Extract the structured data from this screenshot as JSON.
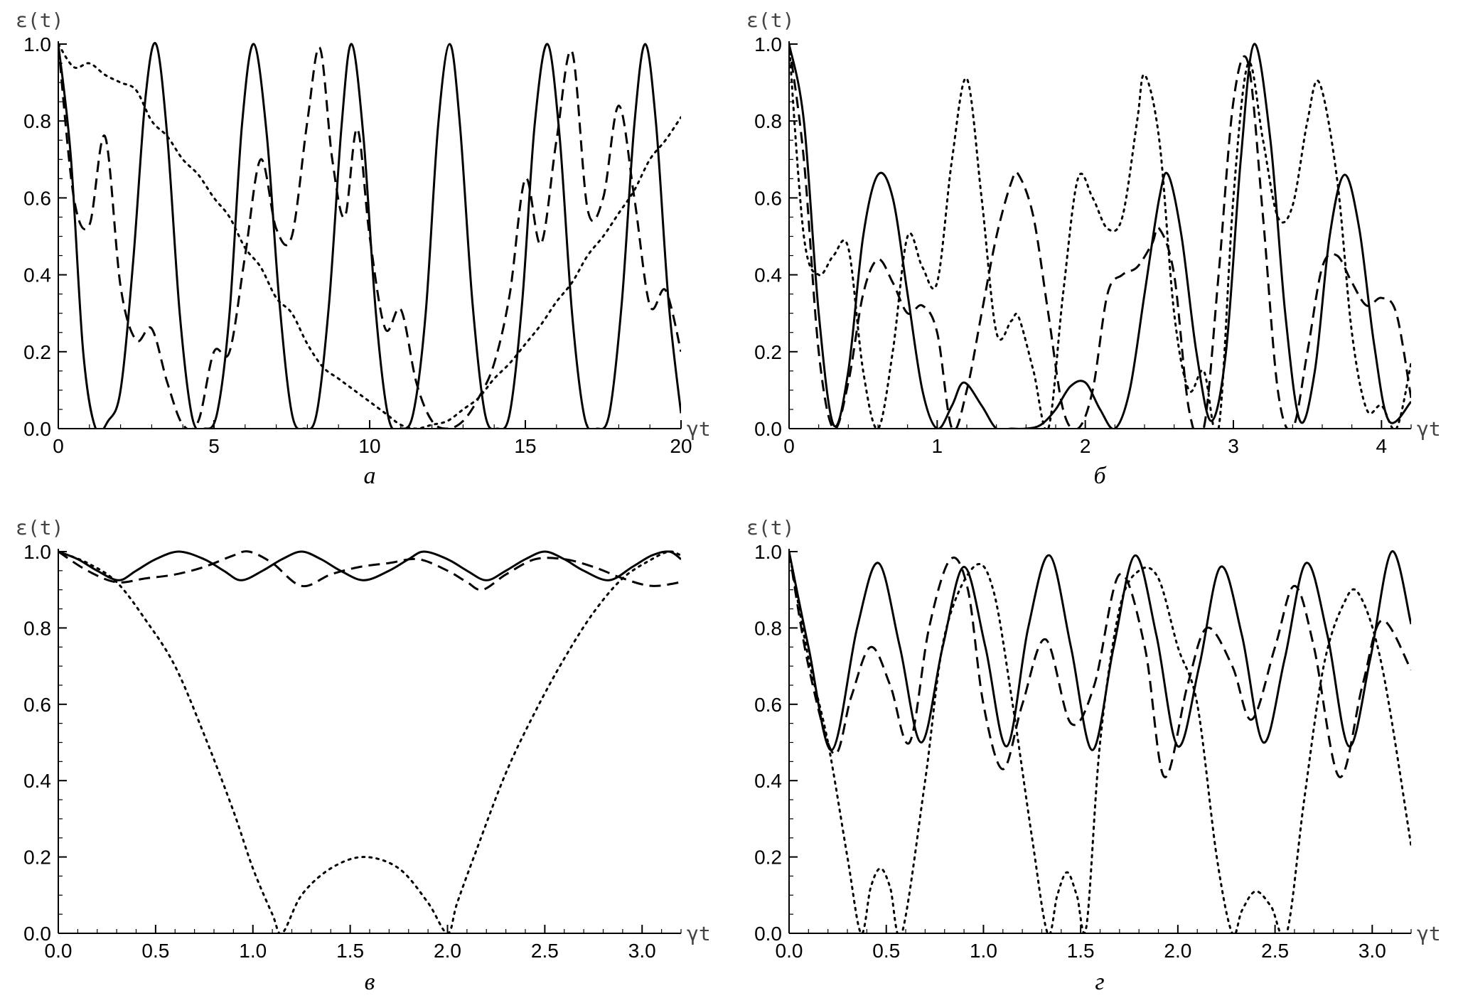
{
  "chart_data": [
    {
      "panel": "a",
      "caption": "а",
      "type": "line",
      "ylabel": "ε(t)",
      "xlabel": "γt",
      "xlim": [
        0,
        20
      ],
      "ylim": [
        0,
        1
      ],
      "xticks": [
        0,
        5,
        10,
        15,
        20
      ],
      "xtick_labels": [
        "0",
        "5",
        "10",
        "15",
        "20"
      ],
      "yticks": [
        0,
        0.2,
        0.4,
        0.6,
        0.8,
        1.0
      ],
      "ytick_labels": [
        "0.0",
        "0.2",
        "0.4",
        "0.6",
        "0.8",
        "1.0"
      ],
      "series": [
        {
          "style": "solid",
          "x": [
            0,
            0.4,
            0.8,
            1.2,
            1.6,
            2.0,
            2.4,
            2.8,
            3.14,
            3.5,
            3.9,
            4.3,
            4.7,
            5.1,
            5.5,
            5.9,
            6.28,
            6.7,
            7.1,
            7.5,
            7.9,
            8.3,
            8.7,
            9.1,
            9.42,
            9.8,
            10.2,
            10.6,
            11.0,
            11.4,
            11.8,
            12.2,
            12.57,
            12.9,
            13.3,
            13.7,
            14.1,
            14.5,
            14.9,
            15.3,
            15.71,
            16.1,
            16.5,
            16.9,
            17.3,
            17.7,
            18.1,
            18.5,
            18.85,
            19.2,
            19.6,
            20.0
          ],
          "y": [
            1.0,
            0.71,
            0.2,
            0.0,
            0.02,
            0.1,
            0.43,
            0.86,
            1.0,
            0.76,
            0.3,
            0.03,
            0.0,
            0.04,
            0.3,
            0.79,
            1.0,
            0.76,
            0.33,
            0.04,
            0.0,
            0.04,
            0.33,
            0.79,
            1.0,
            0.76,
            0.3,
            0.03,
            0.0,
            0.04,
            0.3,
            0.79,
            1.0,
            0.79,
            0.33,
            0.04,
            0.0,
            0.04,
            0.33,
            0.79,
            1.0,
            0.76,
            0.3,
            0.03,
            0.0,
            0.04,
            0.33,
            0.79,
            1.0,
            0.79,
            0.33,
            0.04
          ]
        },
        {
          "style": "dashed",
          "x": [
            0,
            0.5,
            1.0,
            1.5,
            2.0,
            2.5,
            3.0,
            3.5,
            4.0,
            4.5,
            5.0,
            5.5,
            6.0,
            6.5,
            7.0,
            7.5,
            8.0,
            8.4,
            8.8,
            9.2,
            9.6,
            10.0,
            10.5,
            11.0,
            11.5,
            12.0,
            12.5,
            13.0,
            13.5,
            14.0,
            14.5,
            15.0,
            15.5,
            16.0,
            16.5,
            17.0,
            17.5,
            18.0,
            18.5,
            19.0,
            19.5,
            20.0
          ],
          "y": [
            1.0,
            0.6,
            0.53,
            0.76,
            0.37,
            0.23,
            0.26,
            0.12,
            0.01,
            0.02,
            0.2,
            0.2,
            0.45,
            0.7,
            0.52,
            0.5,
            0.8,
            0.99,
            0.7,
            0.55,
            0.78,
            0.5,
            0.26,
            0.31,
            0.12,
            0.02,
            0.0,
            0.02,
            0.08,
            0.17,
            0.35,
            0.65,
            0.48,
            0.75,
            0.98,
            0.57,
            0.6,
            0.84,
            0.6,
            0.32,
            0.36,
            0.2
          ]
        },
        {
          "style": "dotted",
          "x": [
            0,
            0.5,
            1.0,
            1.5,
            2.0,
            2.5,
            3.0,
            3.5,
            4.0,
            4.5,
            5.0,
            5.5,
            6.0,
            6.5,
            7.0,
            7.5,
            8.0,
            8.5,
            9.0,
            9.5,
            10.0,
            10.5,
            11.0,
            11.5,
            12.0,
            12.5,
            13.0,
            13.5,
            14.0,
            14.5,
            15.0,
            15.5,
            16.0,
            16.5,
            17.0,
            17.5,
            18.0,
            18.5,
            19.0,
            19.5,
            20.0
          ],
          "y": [
            1.0,
            0.94,
            0.95,
            0.92,
            0.9,
            0.88,
            0.8,
            0.76,
            0.7,
            0.66,
            0.6,
            0.55,
            0.47,
            0.42,
            0.34,
            0.3,
            0.22,
            0.16,
            0.13,
            0.1,
            0.07,
            0.04,
            0.01,
            0.0,
            0.01,
            0.02,
            0.05,
            0.08,
            0.13,
            0.17,
            0.22,
            0.27,
            0.33,
            0.38,
            0.45,
            0.5,
            0.56,
            0.62,
            0.7,
            0.75,
            0.81
          ]
        }
      ]
    },
    {
      "panel": "b",
      "caption": "б",
      "type": "line",
      "ylabel": "ε(t)",
      "xlabel": "γt",
      "xlim": [
        0,
        4.2
      ],
      "ylim": [
        0,
        1
      ],
      "xticks": [
        0,
        1,
        2,
        3,
        4
      ],
      "xtick_labels": [
        "0",
        "1",
        "2",
        "3",
        "4"
      ],
      "yticks": [
        0,
        0.2,
        0.4,
        0.6,
        0.8,
        1.0
      ],
      "ytick_labels": [
        "0.0",
        "0.2",
        "0.4",
        "0.6",
        "0.8",
        "1.0"
      ],
      "series": [
        {
          "style": "solid",
          "x": [
            0,
            0.1,
            0.2,
            0.3,
            0.4,
            0.5,
            0.6,
            0.7,
            0.8,
            0.9,
            1.0,
            1.1,
            1.18,
            1.3,
            1.4,
            1.5,
            1.6,
            1.7,
            1.8,
            1.9,
            2.0,
            2.1,
            2.2,
            2.3,
            2.4,
            2.5,
            2.56,
            2.65,
            2.75,
            2.85,
            2.95,
            3.05,
            3.14,
            3.25,
            3.35,
            3.45,
            3.55,
            3.65,
            3.75,
            3.85,
            3.95,
            4.05,
            4.2
          ],
          "y": [
            1.0,
            0.8,
            0.3,
            0.01,
            0.15,
            0.5,
            0.66,
            0.6,
            0.35,
            0.1,
            0.0,
            0.06,
            0.12,
            0.06,
            0.0,
            0.0,
            0.0,
            0.01,
            0.05,
            0.11,
            0.12,
            0.05,
            0.0,
            0.1,
            0.35,
            0.6,
            0.66,
            0.5,
            0.2,
            0.02,
            0.2,
            0.7,
            1.0,
            0.75,
            0.3,
            0.02,
            0.15,
            0.5,
            0.66,
            0.52,
            0.22,
            0.02,
            0.07
          ]
        },
        {
          "style": "dashed",
          "x": [
            0,
            0.1,
            0.2,
            0.3,
            0.4,
            0.5,
            0.6,
            0.7,
            0.8,
            0.9,
            1.0,
            1.1,
            1.2,
            1.3,
            1.4,
            1.5,
            1.55,
            1.65,
            1.75,
            1.85,
            1.95,
            2.05,
            2.15,
            2.25,
            2.35,
            2.45,
            2.5,
            2.6,
            2.7,
            2.8,
            2.9,
            3.0,
            3.1,
            3.2,
            3.3,
            3.4,
            3.5,
            3.6,
            3.7,
            3.8,
            3.9,
            4.0,
            4.1,
            4.2
          ],
          "y": [
            1.0,
            0.7,
            0.2,
            0.0,
            0.12,
            0.35,
            0.44,
            0.38,
            0.3,
            0.32,
            0.25,
            0.0,
            0.1,
            0.3,
            0.5,
            0.64,
            0.66,
            0.55,
            0.3,
            0.05,
            0.0,
            0.1,
            0.35,
            0.4,
            0.42,
            0.48,
            0.52,
            0.4,
            0.05,
            0.0,
            0.4,
            0.85,
            0.95,
            0.55,
            0.1,
            0.0,
            0.2,
            0.42,
            0.45,
            0.38,
            0.32,
            0.34,
            0.3,
            0.08
          ]
        },
        {
          "style": "dotted",
          "x": [
            0,
            0.1,
            0.2,
            0.3,
            0.4,
            0.5,
            0.6,
            0.7,
            0.8,
            0.9,
            1.0,
            1.1,
            1.2,
            1.3,
            1.4,
            1.5,
            1.55,
            1.65,
            1.75,
            1.85,
            1.95,
            2.05,
            2.15,
            2.25,
            2.35,
            2.4,
            2.5,
            2.6,
            2.7,
            2.8,
            2.9,
            3.0,
            3.1,
            3.2,
            3.3,
            3.4,
            3.5,
            3.58,
            3.7,
            3.8,
            3.9,
            4.0,
            4.1,
            4.2
          ],
          "y": [
            1.0,
            0.5,
            0.4,
            0.45,
            0.47,
            0.15,
            0.0,
            0.2,
            0.5,
            0.42,
            0.38,
            0.7,
            0.91,
            0.6,
            0.25,
            0.28,
            0.29,
            0.15,
            0.0,
            0.35,
            0.65,
            0.6,
            0.52,
            0.55,
            0.8,
            0.92,
            0.75,
            0.3,
            0.1,
            0.15,
            0.0,
            0.6,
            0.95,
            0.75,
            0.55,
            0.58,
            0.8,
            0.9,
            0.65,
            0.25,
            0.05,
            0.06,
            0.0,
            0.17
          ]
        }
      ]
    },
    {
      "panel": "c",
      "caption": "в",
      "type": "line",
      "ylabel": "ε(t)",
      "xlabel": "γt",
      "xlim": [
        0,
        3.2
      ],
      "ylim": [
        0,
        1
      ],
      "xticks": [
        0,
        0.5,
        1.0,
        1.5,
        2.0,
        2.5,
        3.0
      ],
      "xtick_labels": [
        "0.0",
        "0.5",
        "1.0",
        "1.5",
        "2.0",
        "2.5",
        "3.0"
      ],
      "yticks": [
        0,
        0.2,
        0.4,
        0.6,
        0.8,
        1.0
      ],
      "ytick_labels": [
        "0.0",
        "0.2",
        "0.4",
        "0.6",
        "0.8",
        "1.0"
      ],
      "series": [
        {
          "style": "solid",
          "x": [
            0,
            0.1,
            0.2,
            0.31,
            0.4,
            0.5,
            0.62,
            0.75,
            0.85,
            0.94,
            1.05,
            1.15,
            1.25,
            1.35,
            1.45,
            1.57,
            1.7,
            1.8,
            1.88,
            2.0,
            2.1,
            2.2,
            2.3,
            2.4,
            2.5,
            2.6,
            2.7,
            2.83,
            2.95,
            3.05,
            3.14,
            3.2
          ],
          "y": [
            1.0,
            0.98,
            0.95,
            0.925,
            0.95,
            0.98,
            1.0,
            0.98,
            0.95,
            0.925,
            0.95,
            0.98,
            1.0,
            0.98,
            0.95,
            0.925,
            0.95,
            0.98,
            1.0,
            0.98,
            0.95,
            0.925,
            0.95,
            0.98,
            1.0,
            0.98,
            0.95,
            0.925,
            0.96,
            0.99,
            1.0,
            0.98
          ]
        },
        {
          "style": "dashed",
          "x": [
            0,
            0.15,
            0.3,
            0.45,
            0.6,
            0.75,
            0.9,
            0.98,
            1.1,
            1.25,
            1.4,
            1.55,
            1.7,
            1.85,
            2.0,
            2.1,
            2.18,
            2.3,
            2.45,
            2.6,
            2.75,
            2.9,
            3.05,
            3.2
          ],
          "y": [
            1.0,
            0.95,
            0.92,
            0.93,
            0.94,
            0.96,
            0.99,
            1.0,
            0.97,
            0.91,
            0.94,
            0.96,
            0.97,
            0.98,
            0.95,
            0.92,
            0.9,
            0.94,
            0.98,
            0.98,
            0.96,
            0.93,
            0.91,
            0.92
          ]
        },
        {
          "style": "dotted",
          "x": [
            0,
            0.15,
            0.3,
            0.45,
            0.6,
            0.75,
            0.9,
            1.0,
            1.1,
            1.15,
            1.25,
            1.4,
            1.57,
            1.75,
            1.9,
            2.0,
            2.05,
            2.15,
            2.3,
            2.45,
            2.6,
            2.75,
            2.9,
            3.05,
            3.14,
            3.2
          ],
          "y": [
            1.0,
            0.97,
            0.92,
            0.82,
            0.7,
            0.52,
            0.32,
            0.17,
            0.05,
            0.0,
            0.1,
            0.17,
            0.2,
            0.17,
            0.08,
            0.0,
            0.08,
            0.22,
            0.42,
            0.58,
            0.72,
            0.84,
            0.93,
            0.98,
            1.0,
            0.99
          ]
        }
      ]
    },
    {
      "panel": "d",
      "caption": "г",
      "type": "line",
      "ylabel": "ε(t)",
      "xlabel": "γt",
      "xlim": [
        0,
        3.2
      ],
      "ylim": [
        0,
        1
      ],
      "xticks": [
        0,
        0.5,
        1.0,
        1.5,
        2.0,
        2.5,
        3.0
      ],
      "xtick_labels": [
        "0.0",
        "0.5",
        "1.0",
        "1.5",
        "2.0",
        "2.5",
        "3.0"
      ],
      "yticks": [
        0,
        0.2,
        0.4,
        0.6,
        0.8,
        1.0
      ],
      "ytick_labels": [
        "0.0",
        "0.2",
        "0.4",
        "0.6",
        "0.8",
        "1.0"
      ],
      "series": [
        {
          "style": "solid",
          "x": [
            0,
            0.1,
            0.22,
            0.35,
            0.46,
            0.57,
            0.68,
            0.79,
            0.9,
            1.01,
            1.12,
            1.23,
            1.34,
            1.45,
            1.56,
            1.67,
            1.78,
            1.89,
            2.0,
            2.11,
            2.22,
            2.33,
            2.44,
            2.55,
            2.66,
            2.77,
            2.88,
            2.99,
            3.1,
            3.2
          ],
          "y": [
            1.0,
            0.75,
            0.48,
            0.8,
            0.97,
            0.75,
            0.5,
            0.75,
            0.96,
            0.75,
            0.49,
            0.8,
            0.99,
            0.75,
            0.48,
            0.75,
            0.99,
            0.78,
            0.49,
            0.7,
            0.96,
            0.78,
            0.5,
            0.72,
            0.97,
            0.78,
            0.49,
            0.72,
            1.0,
            0.81
          ]
        },
        {
          "style": "dashed",
          "x": [
            0,
            0.1,
            0.23,
            0.32,
            0.42,
            0.52,
            0.62,
            0.72,
            0.83,
            0.92,
            1.0,
            1.1,
            1.2,
            1.32,
            1.45,
            1.57,
            1.7,
            1.83,
            1.93,
            2.05,
            2.15,
            2.28,
            2.38,
            2.5,
            2.6,
            2.7,
            2.83,
            2.95,
            3.05,
            3.2
          ],
          "y": [
            1.0,
            0.7,
            0.47,
            0.62,
            0.75,
            0.65,
            0.5,
            0.8,
            0.98,
            0.9,
            0.6,
            0.43,
            0.6,
            0.77,
            0.55,
            0.65,
            0.94,
            0.75,
            0.41,
            0.65,
            0.8,
            0.7,
            0.56,
            0.75,
            0.91,
            0.75,
            0.41,
            0.65,
            0.82,
            0.69
          ]
        },
        {
          "style": "dotted",
          "x": [
            0,
            0.1,
            0.2,
            0.3,
            0.37,
            0.42,
            0.47,
            0.52,
            0.58,
            0.7,
            0.8,
            0.95,
            1.05,
            1.15,
            1.25,
            1.33,
            1.38,
            1.43,
            1.48,
            1.53,
            1.6,
            1.7,
            1.8,
            1.9,
            2.0,
            2.1,
            2.2,
            2.28,
            2.33,
            2.4,
            2.48,
            2.56,
            2.65,
            2.75,
            2.85,
            2.93,
            3.05,
            3.2
          ],
          "y": [
            1.0,
            0.72,
            0.5,
            0.2,
            0.0,
            0.12,
            0.17,
            0.12,
            0.0,
            0.4,
            0.78,
            0.96,
            0.9,
            0.6,
            0.25,
            0.0,
            0.1,
            0.16,
            0.1,
            0.02,
            0.5,
            0.85,
            0.95,
            0.93,
            0.75,
            0.6,
            0.2,
            0.0,
            0.06,
            0.11,
            0.07,
            0.0,
            0.35,
            0.7,
            0.86,
            0.89,
            0.7,
            0.23
          ]
        }
      ]
    }
  ]
}
